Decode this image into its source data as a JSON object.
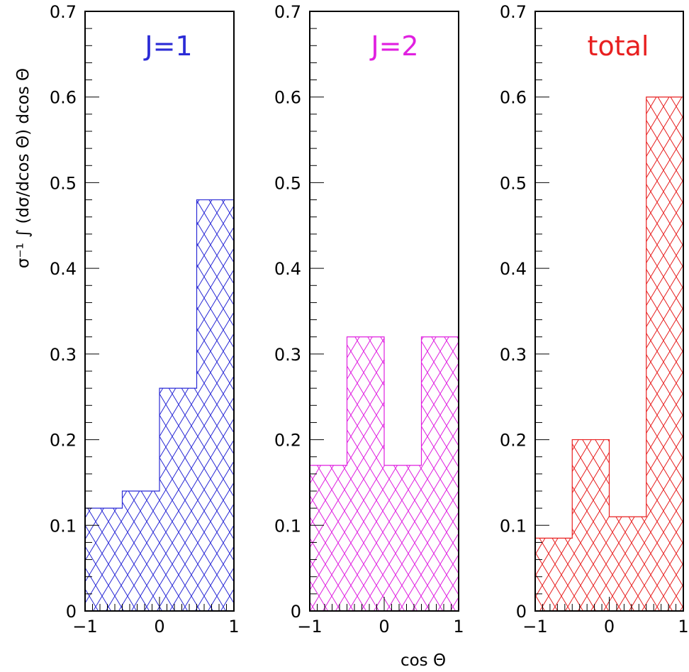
{
  "chart_data": {
    "type": "bar",
    "ylabel": "σ⁻¹ ∫ (dσ/dcos Θ) dcos Θ",
    "xlabel": "cos Θ",
    "ylim": [
      0,
      0.7
    ],
    "xlim": [
      -1,
      1
    ],
    "y_ticks": [
      "0",
      "0.1",
      "0.2",
      "0.3",
      "0.4",
      "0.5",
      "0.6",
      "0.7"
    ],
    "x_ticks": [
      "−1",
      "0",
      "1"
    ],
    "bin_edges": [
      -1,
      -0.5,
      0,
      0.5,
      1
    ],
    "panels": [
      {
        "title": "J=1",
        "color": "#2b2bd6",
        "values": [
          0.12,
          0.14,
          0.26,
          0.48
        ]
      },
      {
        "title": "J=2",
        "color": "#e020e0",
        "values": [
          0.17,
          0.32,
          0.17,
          0.32
        ]
      },
      {
        "title": "total",
        "color": "#e82020",
        "values": [
          0.085,
          0.2,
          0.11,
          0.6
        ]
      }
    ]
  }
}
